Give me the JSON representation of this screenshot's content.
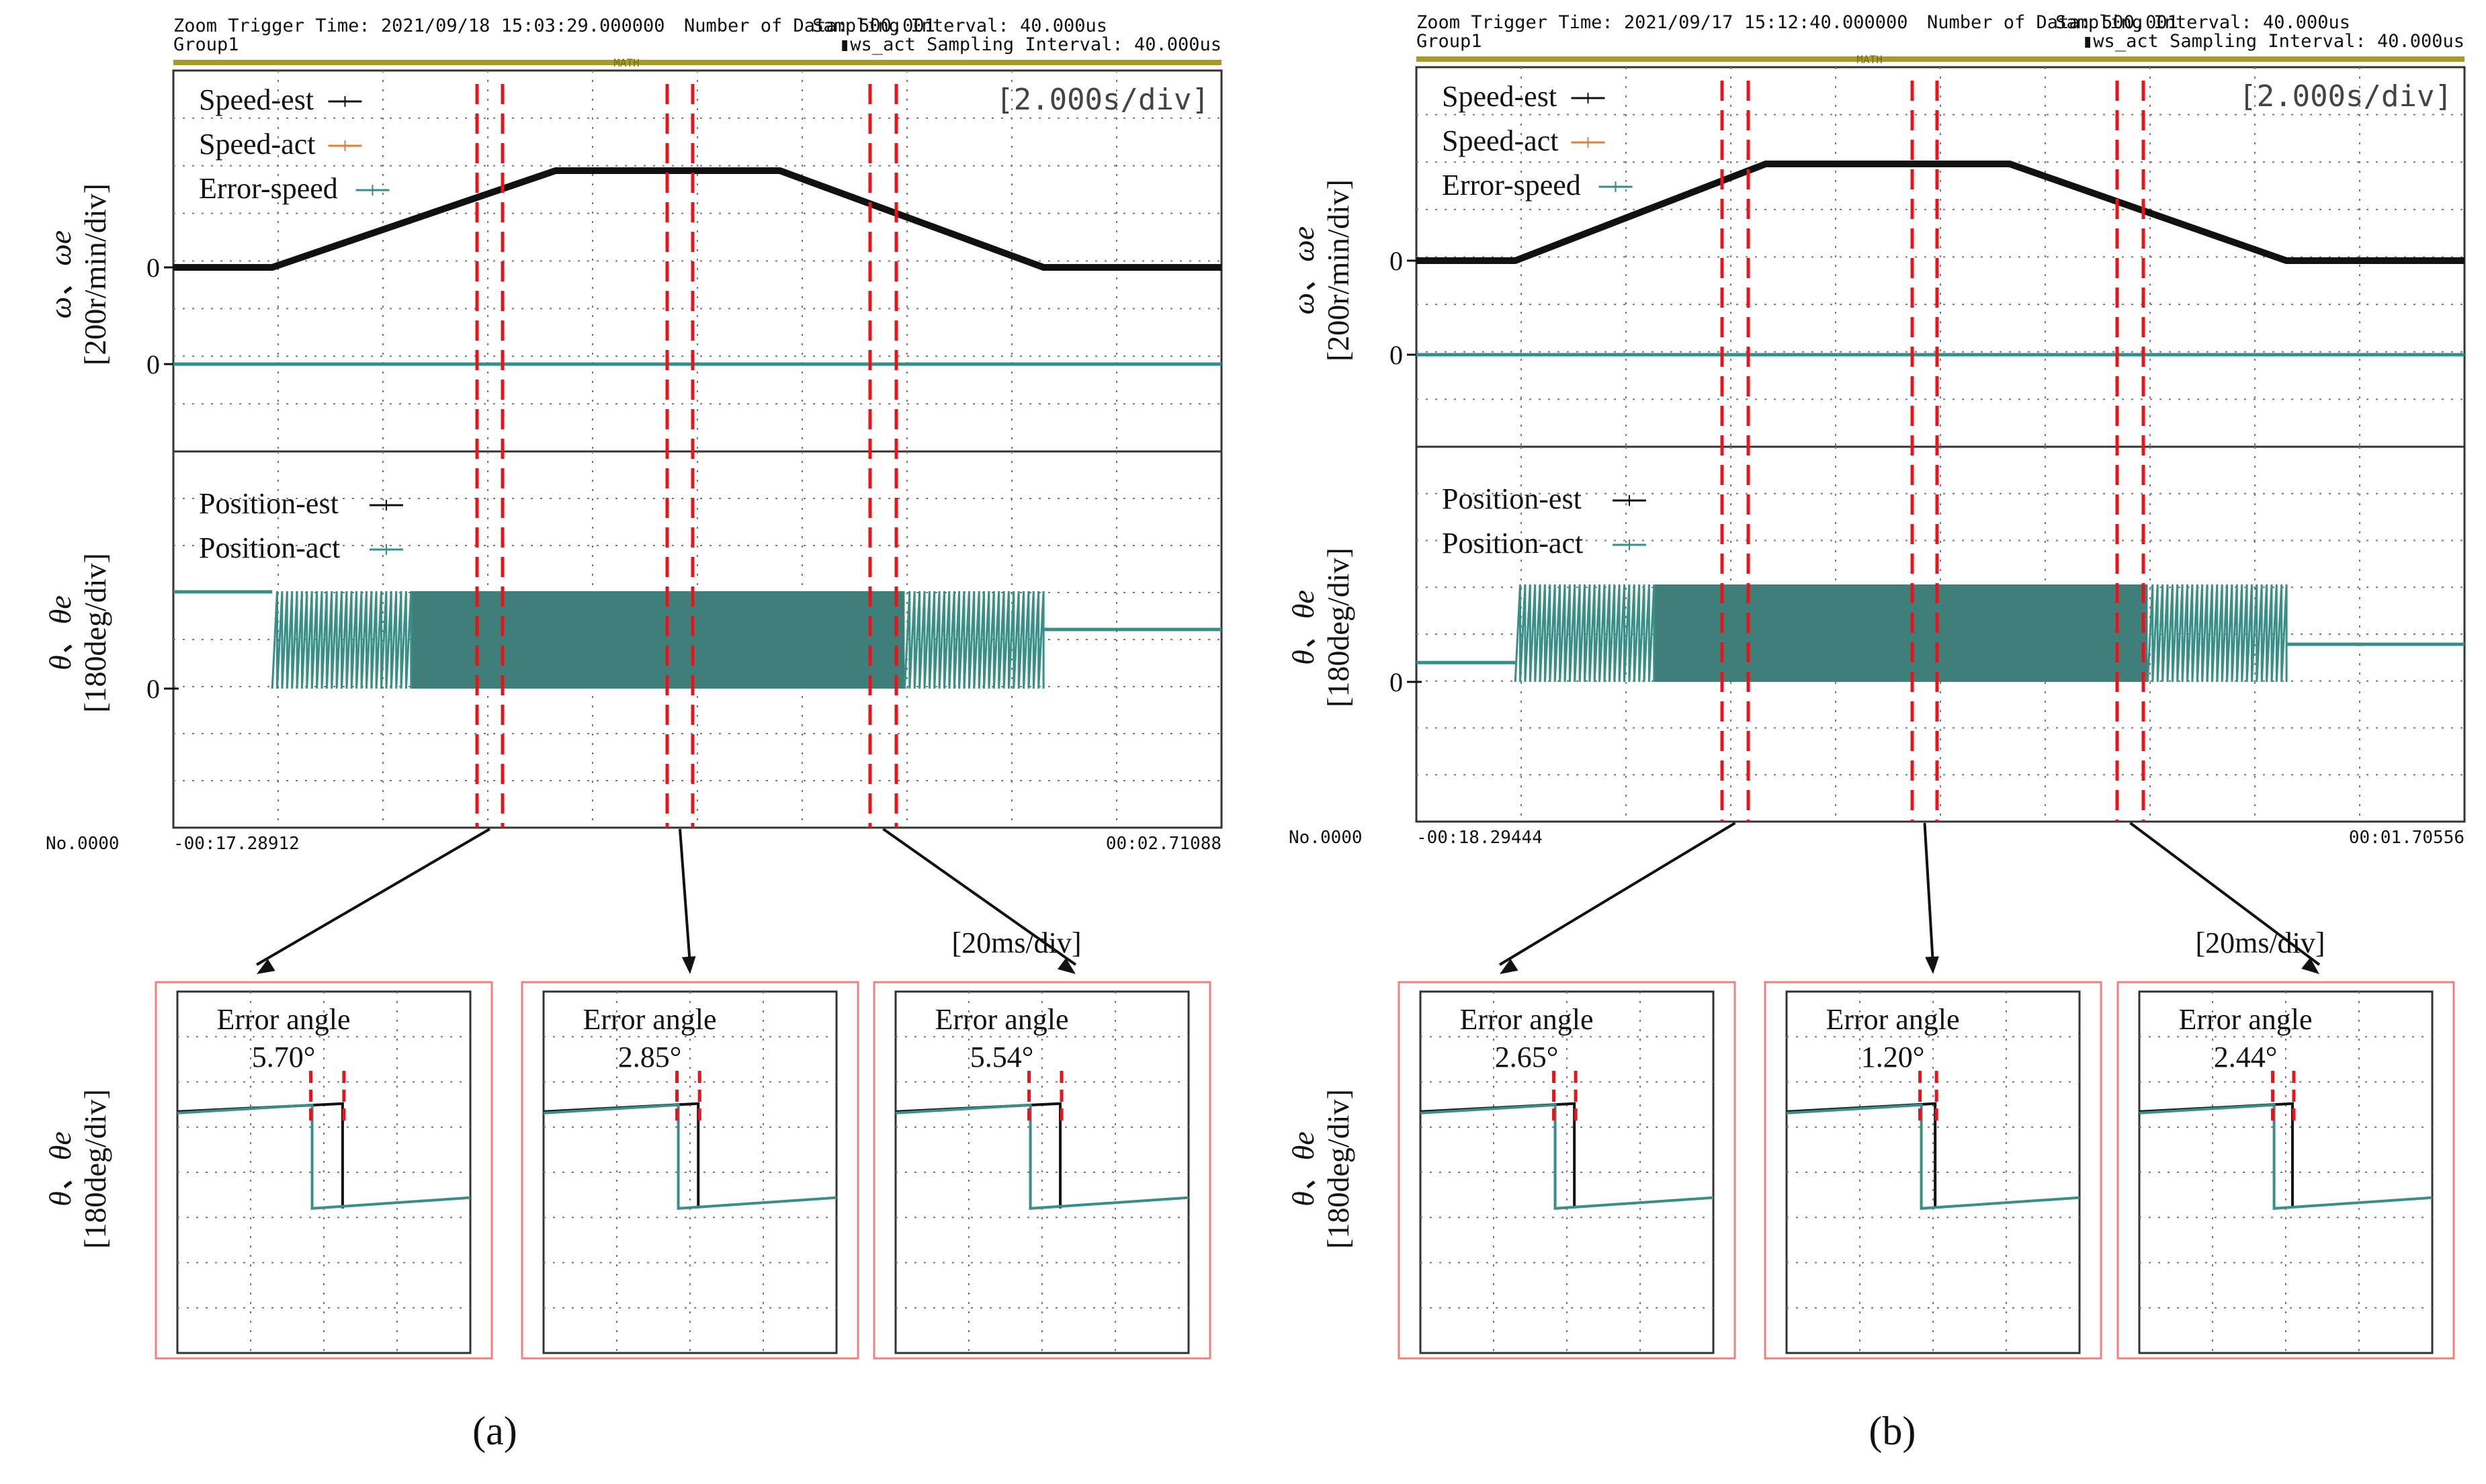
{
  "panels": [
    {
      "caption": "(a)",
      "header": {
        "trigger": "Zoom Trigger Time: 2021/09/18 15:03:29.000000",
        "count": "Number of Data: 500,001",
        "sampling": "Sampling Interval:  40.000us",
        "group": "Group1",
        "sampling2": "▮ws_act Sampling Interval:  40.000us",
        "math": "MATH"
      },
      "timebase": "[2.000s/div]",
      "record_no": "No.0000",
      "t_start": "-00:17.28912",
      "t_end": "00:02.71088",
      "zoom_timebase": "[20ms/div]",
      "speed_ylabel_sym": "ω、ωe",
      "speed_ylabel_unit": "[200r/min/div]",
      "pos_ylabel_sym": "θ、θe",
      "pos_ylabel_unit": "[180deg/div]",
      "zero_label": "0",
      "legend_speed": [
        "Speed-est",
        "Speed-act",
        "Error-speed"
      ],
      "legend_pos": [
        "Position-est",
        "Position-act"
      ],
      "zooms": [
        {
          "title": "Error angle",
          "value": "5.70°"
        },
        {
          "title": "Error angle",
          "value": "2.85°"
        },
        {
          "title": "Error angle",
          "value": "5.54°"
        }
      ]
    },
    {
      "caption": "(b)",
      "header": {
        "trigger": "Zoom Trigger Time: 2021/09/17 15:12:40.000000",
        "count": "Number of Data: 500,001",
        "sampling": "Sampling Interval:  40.000us",
        "group": "Group1",
        "sampling2": "▮ws_act Sampling Interval: 40.000us",
        "math": "MATH"
      },
      "timebase": "[2.000s/div]",
      "record_no": "No.0000",
      "t_start": "-00:18.29444",
      "t_end": "00:01.70556",
      "zoom_timebase": "[20ms/div]",
      "speed_ylabel_sym": "ω、ωe",
      "speed_ylabel_unit": "[200r/min/div]",
      "pos_ylabel_sym": "θ、θe",
      "pos_ylabel_unit": "[180deg/div]",
      "zero_label": "0",
      "legend_speed": [
        "Speed-est",
        "Speed-act",
        "Error-speed"
      ],
      "legend_pos": [
        "Position-est",
        "Position-act"
      ],
      "zooms": [
        {
          "title": "Error angle",
          "value": "2.65°"
        },
        {
          "title": "Error angle",
          "value": "1.20°"
        },
        {
          "title": "Error angle",
          "value": "2.44°"
        }
      ]
    }
  ],
  "colors": {
    "est": "#111111",
    "act": "#d9823b",
    "error": "#2f8f8a",
    "pos_act": "#3a8e88",
    "marker": "#e8141b",
    "frame_highlight": "#f08080",
    "header_bar": "#a89a2a"
  },
  "chart_data": [
    {
      "type": "line",
      "x_units": "div (2.000 s/div)",
      "series": [
        {
          "name": "Speed-est",
          "x": [
            0,
            1.5,
            5.8,
            9.2,
            13.2,
            15.9
          ],
          "y": [
            0,
            0,
            2.0,
            2.0,
            0,
            0
          ]
        },
        {
          "name": "Error-speed",
          "x": [
            0,
            15.9
          ],
          "y": [
            0,
            0
          ]
        }
      ],
      "position": {
        "start_level": 0.9,
        "end_level": 0.55,
        "wrap_span": [
          1.5,
          13.2
        ]
      },
      "error_angles_deg": [
        5.7,
        2.85,
        5.54
      ]
    },
    {
      "type": "line",
      "x_units": "div (2.000 s/div)",
      "series": [
        {
          "name": "Speed-est",
          "x": [
            0,
            1.5,
            5.3,
            9.0,
            13.2,
            15.9
          ],
          "y": [
            0,
            0,
            2.0,
            2.0,
            0,
            0
          ]
        },
        {
          "name": "Error-speed",
          "x": [
            0,
            15.9
          ],
          "y": [
            0,
            0
          ]
        }
      ],
      "position": {
        "start_level": 0.18,
        "end_level": 0.35,
        "wrap_span": [
          1.5,
          13.2
        ]
      },
      "error_angles_deg": [
        2.65,
        1.2,
        2.44
      ]
    }
  ]
}
